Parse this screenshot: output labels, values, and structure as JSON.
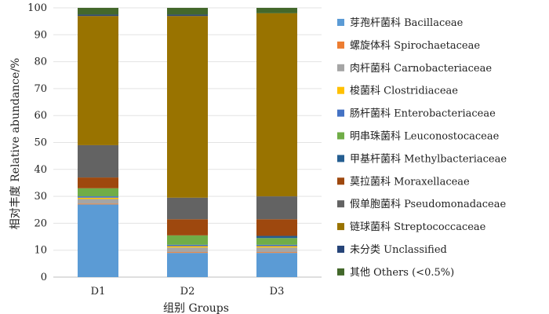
{
  "chart_data": {
    "type": "bar",
    "stacked": true,
    "title": "",
    "xlabel": "组别 Groups",
    "ylabel": "相对丰度 Relative abundance/%",
    "ylim": [
      0,
      100
    ],
    "yticks": [
      0,
      10,
      20,
      30,
      40,
      50,
      60,
      70,
      80,
      90,
      100
    ],
    "categories": [
      "D1",
      "D2",
      "D3"
    ],
    "legend_position": "right",
    "series": [
      {
        "name": "芽孢杆菌科  Bacillaceae",
        "color": "#5b9bd5",
        "values": [
          27.0,
          9.0,
          9.0
        ]
      },
      {
        "name": "螺旋体科  Spirochaetaceae",
        "color": "#ed7d31",
        "values": [
          0.3,
          0.3,
          0.3
        ]
      },
      {
        "name": "肉杆菌科  Carnobacteriaceae",
        "color": "#a5a5a5",
        "values": [
          1.7,
          1.7,
          1.7
        ]
      },
      {
        "name": "梭菌科  Clostridiaceae",
        "color": "#ffc000",
        "values": [
          0.5,
          0.5,
          0.5
        ]
      },
      {
        "name": "肠杆菌科  Enterobacteriaceae",
        "color": "#4472c4",
        "values": [
          0.5,
          0.5,
          0.5
        ]
      },
      {
        "name": "明串珠菌科  Leuconostocaceae",
        "color": "#70ad47",
        "values": [
          3.0,
          3.5,
          2.5
        ]
      },
      {
        "name": "甲基杆菌科  Methylbacteriaceae",
        "color": "#255e91",
        "values": [
          0.0,
          0.0,
          0.8
        ]
      },
      {
        "name": "莫拉菌科  Moraxellaceae",
        "color": "#9e480e",
        "values": [
          4.0,
          6.0,
          6.2
        ]
      },
      {
        "name": "假单胞菌科  Pseudomonadaceae",
        "color": "#636363",
        "values": [
          12.0,
          8.0,
          8.5
        ]
      },
      {
        "name": "链球菌科  Streptococcaceae",
        "color": "#997300",
        "values": [
          48.0,
          67.5,
          68.0
        ]
      },
      {
        "name": "未分类  Unclassified",
        "color": "#264478",
        "values": [
          0.5,
          0.5,
          0.0
        ]
      },
      {
        "name": "其他  Others (<0.5%)",
        "color": "#43682b",
        "values": [
          2.5,
          2.5,
          2.0
        ]
      }
    ]
  }
}
